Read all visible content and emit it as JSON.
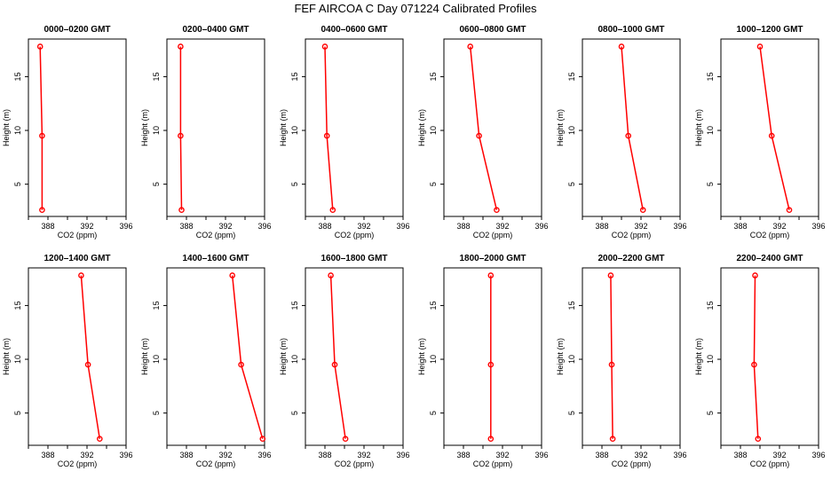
{
  "title": "FEF AIRCOA C  Day 071224  Calibrated Profiles",
  "colors": {
    "series": "#ff0000",
    "axis": "#000000"
  },
  "chart_data": {
    "type": "line",
    "xlabel": "CO2 (ppm)",
    "ylabel": "Height (m)",
    "xlim": [
      386,
      396
    ],
    "ylim": [
      2,
      18.5
    ],
    "xticks": [
      "388",
      "392",
      "396"
    ],
    "yticks": [
      "5",
      "10",
      "15"
    ],
    "grid": false,
    "panels": [
      {
        "title": "0000–0200 GMT",
        "x": [
          387.2,
          387.4,
          387.4
        ],
        "y": [
          17.8,
          9.5,
          2.6
        ]
      },
      {
        "title": "0200–0400 GMT",
        "x": [
          387.4,
          387.4,
          387.5
        ],
        "y": [
          17.8,
          9.5,
          2.6
        ]
      },
      {
        "title": "0400–0600 GMT",
        "x": [
          388.0,
          388.2,
          388.8
        ],
        "y": [
          17.8,
          9.5,
          2.6
        ]
      },
      {
        "title": "0600–0800 GMT",
        "x": [
          388.7,
          389.6,
          391.4
        ],
        "y": [
          17.8,
          9.5,
          2.6
        ]
      },
      {
        "title": "0800–1000 GMT",
        "x": [
          390.0,
          390.7,
          392.2
        ],
        "y": [
          17.8,
          9.5,
          2.6
        ]
      },
      {
        "title": "1000–1200 GMT",
        "x": [
          390.0,
          391.2,
          393.0
        ],
        "y": [
          17.8,
          9.5,
          2.6
        ]
      },
      {
        "title": "1200–1400 GMT",
        "x": [
          391.4,
          392.1,
          393.3
        ],
        "y": [
          17.8,
          9.5,
          2.6
        ]
      },
      {
        "title": "1400–1600 GMT",
        "x": [
          392.7,
          393.6,
          395.8
        ],
        "y": [
          17.8,
          9.5,
          2.6
        ]
      },
      {
        "title": "1600–1800 GMT",
        "x": [
          388.6,
          389.0,
          390.1
        ],
        "y": [
          17.8,
          9.5,
          2.6
        ]
      },
      {
        "title": "1800–2000 GMT",
        "x": [
          390.8,
          390.8,
          390.8
        ],
        "y": [
          17.8,
          9.5,
          2.6
        ]
      },
      {
        "title": "2000–2200 GMT",
        "x": [
          388.9,
          389.0,
          389.1
        ],
        "y": [
          17.8,
          9.5,
          2.6
        ]
      },
      {
        "title": "2200–2400 GMT",
        "x": [
          389.5,
          389.4,
          389.8
        ],
        "y": [
          17.8,
          9.5,
          2.6
        ]
      }
    ]
  }
}
